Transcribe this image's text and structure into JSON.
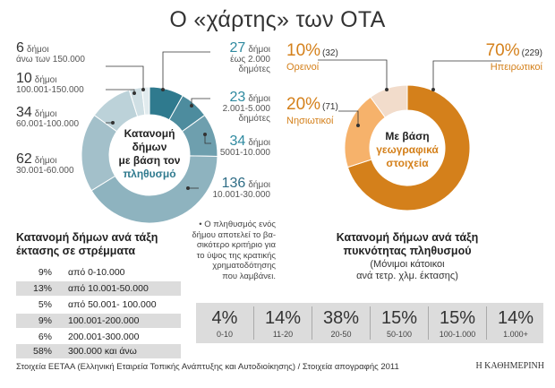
{
  "title": "Ο «χάρτης» των ΟΤΑ",
  "chart_data": [
    {
      "type": "pie",
      "center_text": [
        "Κατανομή",
        "δήμων",
        "με βάση τον",
        "πληθυσμό"
      ],
      "series": [
        {
          "count": "27",
          "unit": "δήμοι",
          "range": "έως 2.000",
          "suffix": "δημότες",
          "value": 27,
          "color": "#2f7a8e"
        },
        {
          "count": "23",
          "unit": "δήμοι",
          "range": "2.001-5.000",
          "suffix": "δημότες",
          "value": 23,
          "color": "#4d8c9e"
        },
        {
          "count": "34",
          "unit": "δήμοι",
          "range": "5001-10.000",
          "suffix": "",
          "value": 34,
          "color": "#6e9fae"
        },
        {
          "count": "136",
          "unit": "δήμοι",
          "range": "10.001-30.000",
          "suffix": "",
          "value": 136,
          "color": "#8eb3bf"
        },
        {
          "count": "62",
          "unit": "δήμοι",
          "range": "30.001-60.000",
          "suffix": "",
          "value": 62,
          "color": "#a3c0ca"
        },
        {
          "count": "34",
          "unit": "δήμοι",
          "range": "60.001-100.000",
          "suffix": "",
          "value": 34,
          "color": "#bcd2d9"
        },
        {
          "count": "10",
          "unit": "δήμοι",
          "range": "100.001-150.000",
          "suffix": "",
          "value": 10,
          "color": "#cfdfe4"
        },
        {
          "count": "6",
          "unit": "δήμοι",
          "range": "άνω των 150.000",
          "suffix": "",
          "value": 6,
          "color": "#e1ebee"
        }
      ]
    },
    {
      "type": "pie",
      "center_text": [
        "Με βάση",
        "γεωγραφικά",
        "στοιχεία"
      ],
      "series": [
        {
          "pct": "70%",
          "count": "(229)",
          "name": "Ηπειρωτικοί",
          "value": 70,
          "color": "#d4801b"
        },
        {
          "pct": "20%",
          "count": "(71)",
          "name": "Νησιωτικοί",
          "value": 20,
          "color": "#f6b26b"
        },
        {
          "pct": "10%",
          "count": "(32)",
          "name": "Ορεινοί",
          "value": 10,
          "color": "#f2dccb"
        }
      ]
    },
    {
      "type": "table",
      "title": [
        "Κατανομή δήμων ανά τάξη",
        "έκτασης σε στρέμματα"
      ],
      "rows": [
        {
          "pct": "9%",
          "range": "από 0-10.000"
        },
        {
          "pct": "13%",
          "range": "από 10.001-50.000"
        },
        {
          "pct": "5%",
          "range": "από 50.001- 100.000"
        },
        {
          "pct": "9%",
          "range": "100.001-200.000"
        },
        {
          "pct": "6%",
          "range": "200.001-300.000"
        },
        {
          "pct": "58%",
          "range": "300.000 και άνω"
        }
      ]
    },
    {
      "type": "table",
      "title": [
        "Κατανομή δήμων ανά τάξη",
        "πυκνότητας πληθυσμού"
      ],
      "subtitle": [
        "(Μόνιμοι κάτοικοι",
        "ανά τετρ. χλμ. έκτασης)"
      ],
      "cells": [
        {
          "pct": "4%",
          "range": "0-10"
        },
        {
          "pct": "14%",
          "range": "11-20"
        },
        {
          "pct": "38%",
          "range": "20-50"
        },
        {
          "pct": "15%",
          "range": "50-100"
        },
        {
          "pct": "15%",
          "range": "100-1.000"
        },
        {
          "pct": "14%",
          "range": "1.000+"
        }
      ]
    }
  ],
  "note": [
    "• Ο πληθυσμός ενός",
    "δήμου αποτελεί το βα-",
    "σικότερο κριτήριο για",
    "το ύψος της κρατικής",
    "χρηματοδότησης",
    "που λαμβάνει."
  ],
  "footer": "Στοιχεία ΕΕΤΑΑ (Ελληνική Εταιρεία Τοπικής Ανάπτυξης και Αυτοδιοίκησης) / Στοιχεία απογραφής 2011",
  "brand": "Η ΚΑΘΗΜΕΡΙΝΗ"
}
